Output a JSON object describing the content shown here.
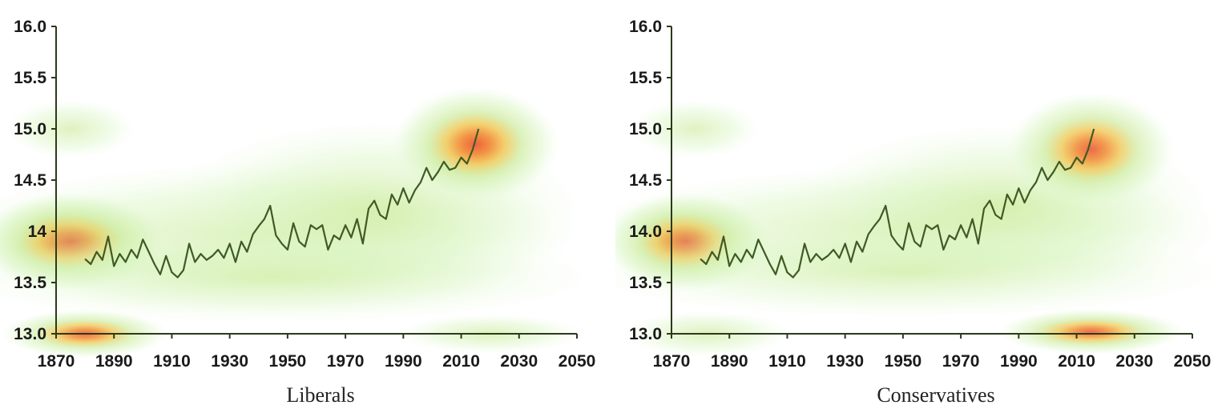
{
  "chart_data": [
    {
      "type": "line",
      "panel_label": "Liberals",
      "xlim": [
        1870,
        2050
      ],
      "ylim": [
        13.0,
        16.0
      ],
      "xticks": [
        "1870",
        "1890",
        "1910",
        "1930",
        "1950",
        "1970",
        "1990",
        "2010",
        "2030",
        "2050"
      ],
      "yticks": [
        "16.0",
        "15.5",
        "15.0",
        "14.5",
        "14",
        "13.5",
        "13.0"
      ],
      "line_color": "#3f5a25",
      "series": [
        {
          "x": [
            1880,
            1882,
            1884,
            1886,
            1888,
            1890,
            1892,
            1894,
            1896,
            1898,
            1900,
            1902,
            1904,
            1906,
            1908,
            1910,
            1912,
            1914,
            1916,
            1918,
            1920,
            1922,
            1924,
            1926,
            1928,
            1930,
            1932,
            1934,
            1936,
            1938,
            1940,
            1942,
            1944,
            1946,
            1948,
            1950,
            1952,
            1954,
            1956,
            1958,
            1960,
            1962,
            1964,
            1966,
            1968,
            1970,
            1972,
            1974,
            1976,
            1978,
            1980,
            1982,
            1984,
            1986,
            1988,
            1990,
            1992,
            1994,
            1996,
            1998,
            2000,
            2002,
            2004,
            2006,
            2008,
            2010,
            2012,
            2014,
            2016
          ],
          "y": [
            13.73,
            13.68,
            13.8,
            13.72,
            13.95,
            13.66,
            13.78,
            13.7,
            13.82,
            13.74,
            13.92,
            13.8,
            13.68,
            13.58,
            13.76,
            13.6,
            13.55,
            13.62,
            13.88,
            13.7,
            13.78,
            13.72,
            13.76,
            13.82,
            13.74,
            13.88,
            13.7,
            13.9,
            13.8,
            13.97,
            14.05,
            14.12,
            14.25,
            13.96,
            13.88,
            13.82,
            14.08,
            13.9,
            13.85,
            14.06,
            14.02,
            14.06,
            13.82,
            13.96,
            13.92,
            14.06,
            13.94,
            14.12,
            13.88,
            14.22,
            14.3,
            14.16,
            14.12,
            14.36,
            14.26,
            14.42,
            14.28,
            14.4,
            14.48,
            14.62,
            14.5,
            14.58,
            14.68,
            14.6,
            14.62,
            14.72,
            14.66,
            14.8,
            15.0
          ]
        }
      ],
      "density_blobs": [
        {
          "x": 1875,
          "y": 13.9,
          "rx": 20,
          "ry": 0.3,
          "peak": 1.0
        },
        {
          "x": 1940,
          "y": 13.95,
          "rx": 70,
          "ry": 0.45,
          "peak": 0.32
        },
        {
          "x": 1980,
          "y": 14.2,
          "rx": 45,
          "ry": 0.55,
          "peak": 0.3
        },
        {
          "x": 2015,
          "y": 14.85,
          "rx": 18,
          "ry": 0.35,
          "peak": 0.5
        },
        {
          "x": 1945,
          "y": 13.55,
          "rx": 70,
          "ry": 0.28,
          "peak": 0.18
        },
        {
          "x": 1875,
          "y": 15.0,
          "rx": 14,
          "ry": 0.18,
          "peak": 0.25
        },
        {
          "x": 1880,
          "y": 13.0,
          "rx": 18,
          "ry": 0.15,
          "peak": 0.4
        },
        {
          "x": 2020,
          "y": 13.0,
          "rx": 20,
          "ry": 0.12,
          "peak": 0.3
        }
      ]
    },
    {
      "type": "line",
      "panel_label": "Conservatives",
      "xlim": [
        1870,
        2050
      ],
      "ylim": [
        13.0,
        16.0
      ],
      "xticks": [
        "1870",
        "1890",
        "1910",
        "1930",
        "1950",
        "1970",
        "1990",
        "2010",
        "2030",
        "2050"
      ],
      "yticks": [
        "16.0",
        "15.5",
        "15.0",
        "14.5",
        "14.0",
        "13.5",
        "13.0"
      ],
      "line_color": "#3f5a25",
      "series": [
        {
          "x": [
            1880,
            1882,
            1884,
            1886,
            1888,
            1890,
            1892,
            1894,
            1896,
            1898,
            1900,
            1902,
            1904,
            1906,
            1908,
            1910,
            1912,
            1914,
            1916,
            1918,
            1920,
            1922,
            1924,
            1926,
            1928,
            1930,
            1932,
            1934,
            1936,
            1938,
            1940,
            1942,
            1944,
            1946,
            1948,
            1950,
            1952,
            1954,
            1956,
            1958,
            1960,
            1962,
            1964,
            1966,
            1968,
            1970,
            1972,
            1974,
            1976,
            1978,
            1980,
            1982,
            1984,
            1986,
            1988,
            1990,
            1992,
            1994,
            1996,
            1998,
            2000,
            2002,
            2004,
            2006,
            2008,
            2010,
            2012,
            2014,
            2016
          ],
          "y": [
            13.73,
            13.68,
            13.8,
            13.72,
            13.95,
            13.66,
            13.78,
            13.7,
            13.82,
            13.74,
            13.92,
            13.8,
            13.68,
            13.58,
            13.76,
            13.6,
            13.55,
            13.62,
            13.88,
            13.7,
            13.78,
            13.72,
            13.76,
            13.82,
            13.74,
            13.88,
            13.7,
            13.9,
            13.8,
            13.97,
            14.05,
            14.12,
            14.25,
            13.96,
            13.88,
            13.82,
            14.08,
            13.9,
            13.85,
            14.06,
            14.02,
            14.06,
            13.82,
            13.96,
            13.92,
            14.06,
            13.94,
            14.12,
            13.88,
            14.22,
            14.3,
            14.16,
            14.12,
            14.36,
            14.26,
            14.42,
            14.28,
            14.4,
            14.48,
            14.62,
            14.5,
            14.58,
            14.68,
            14.6,
            14.62,
            14.72,
            14.66,
            14.8,
            15.0
          ]
        }
      ],
      "density_blobs": [
        {
          "x": 1875,
          "y": 13.9,
          "rx": 18,
          "ry": 0.3,
          "peak": 0.75
        },
        {
          "x": 1950,
          "y": 14.0,
          "rx": 70,
          "ry": 0.4,
          "peak": 0.3
        },
        {
          "x": 1985,
          "y": 14.25,
          "rx": 45,
          "ry": 0.5,
          "peak": 0.28
        },
        {
          "x": 2015,
          "y": 14.8,
          "rx": 18,
          "ry": 0.35,
          "peak": 0.42
        },
        {
          "x": 1950,
          "y": 13.6,
          "rx": 70,
          "ry": 0.28,
          "peak": 0.16
        },
        {
          "x": 1878,
          "y": 15.0,
          "rx": 14,
          "ry": 0.18,
          "peak": 0.22
        },
        {
          "x": 1882,
          "y": 13.0,
          "rx": 18,
          "ry": 0.14,
          "peak": 0.3
        },
        {
          "x": 2015,
          "y": 13.02,
          "rx": 20,
          "ry": 0.14,
          "peak": 0.4
        }
      ]
    }
  ]
}
